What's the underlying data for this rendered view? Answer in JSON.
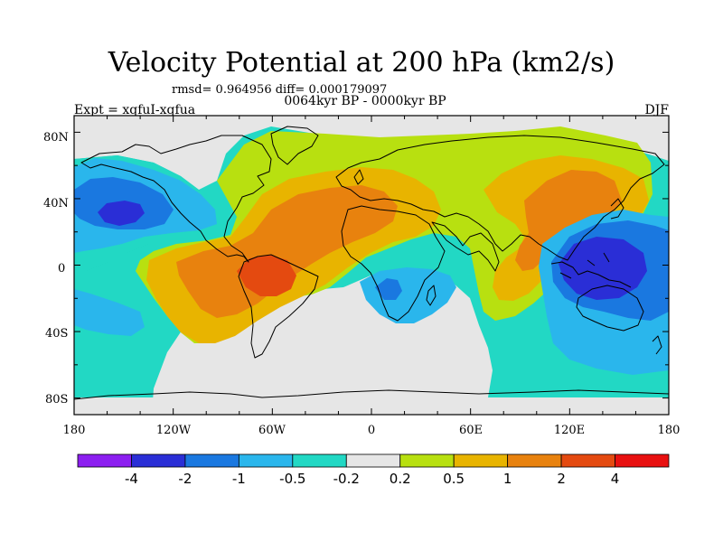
{
  "figure": {
    "title": "Velocity Potential at 200 hPa (km2/s)",
    "stats": "rmsd= 0.964956 diff= 0.000179097",
    "experiment": "Expt = xqfuI-xqfua",
    "period": "0064kyr BP - 0000kyr BP",
    "season": "DJF"
  },
  "map": {
    "projection": "cylindrical equidistant",
    "lon_range": [
      -180,
      180
    ],
    "lat_range": [
      -90,
      90
    ],
    "lat_ticks": [
      "80N",
      "40N",
      "0",
      "40S",
      "80S"
    ],
    "lon_ticks": [
      "180",
      "120W",
      "60W",
      "0",
      "60E",
      "120E",
      "180"
    ],
    "coastlines": true
  },
  "colorbar": {
    "labels": [
      "-4",
      "-2",
      "-1",
      "-0.5",
      "-0.2",
      "0.2",
      "0.5",
      "1",
      "2",
      "4"
    ],
    "colors": [
      "#8c1ff0",
      "#2a2ed6",
      "#1a78e0",
      "#2ab6ec",
      "#22d8c4",
      "#e6e6e6",
      "#b8e010",
      "#e8b400",
      "#e8820e",
      "#e44a10",
      "#e81010"
    ]
  },
  "fields": {
    "category_colors": {
      "neg_strong": "#2a2ed6",
      "neg_mod": "#1a78e0",
      "neg_weak": "#2ab6ec",
      "neg_faint": "#22d8c4",
      "near_zero": "#e6e6e6",
      "pos_faint": "#b8e010",
      "pos_weak": "#e8b400",
      "pos_mod": "#e8820e",
      "pos_strong": "#e44a10"
    }
  }
}
